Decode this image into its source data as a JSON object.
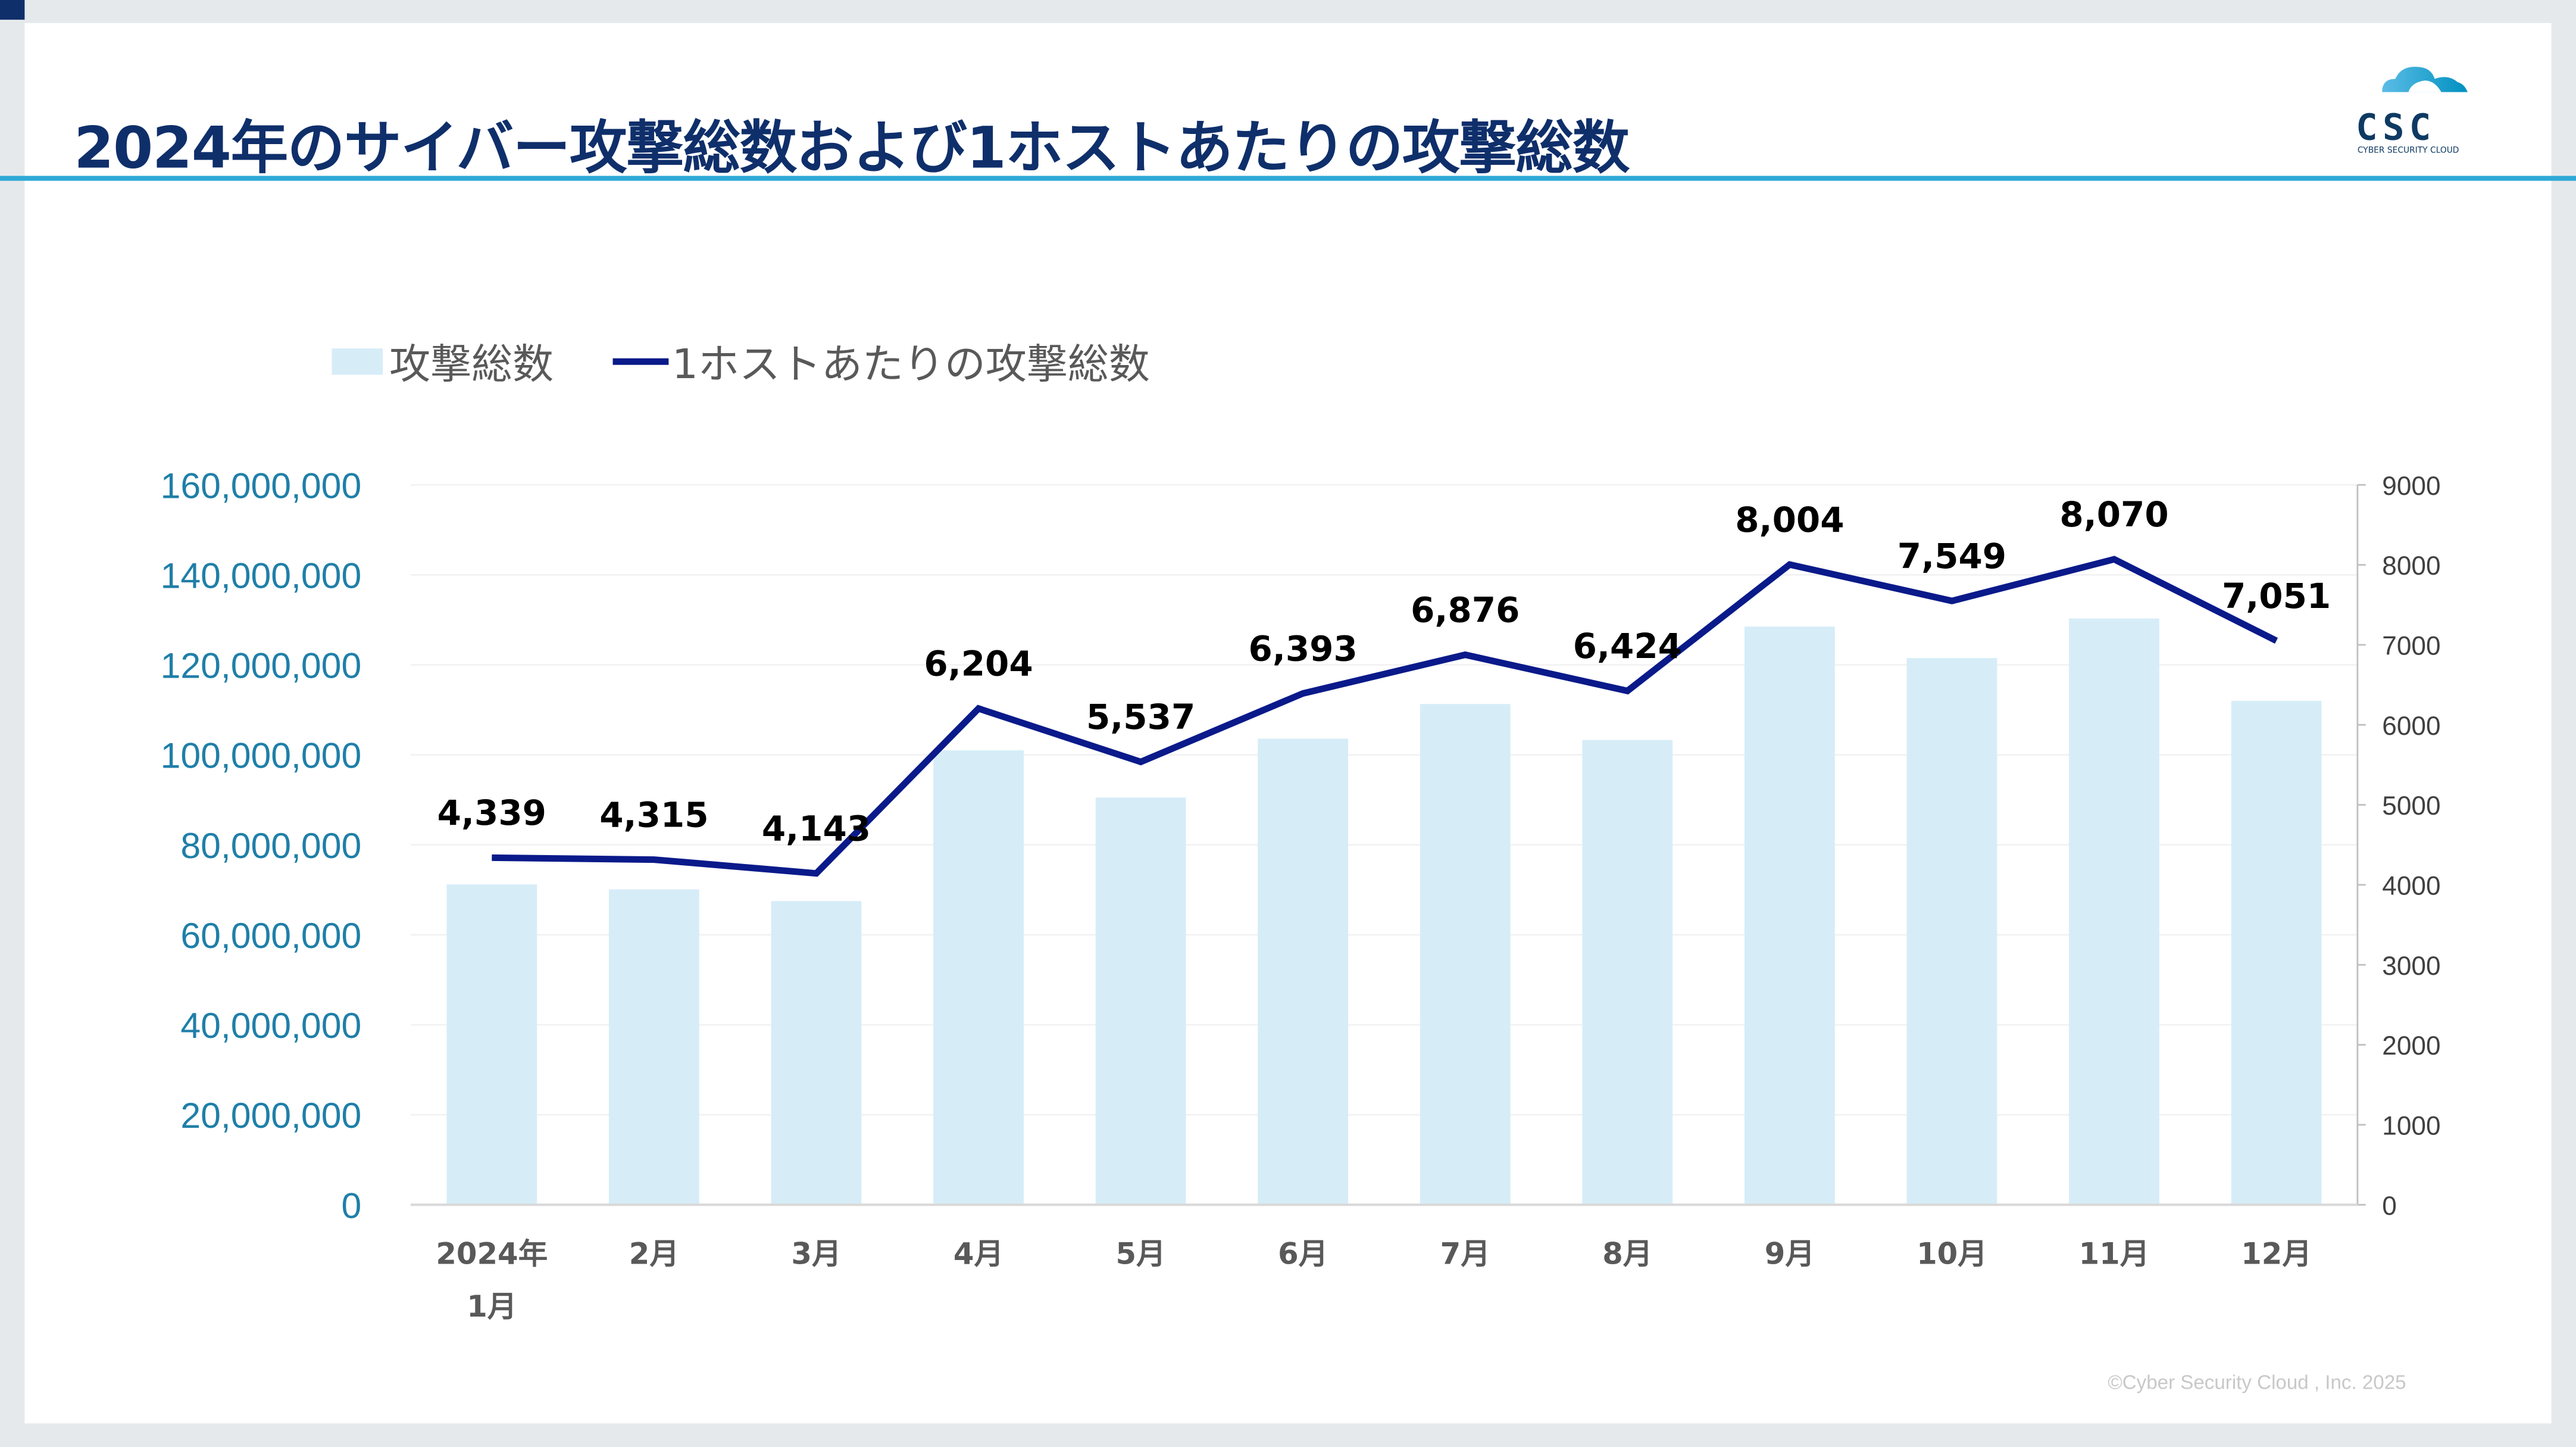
{
  "title": "2024年のサイバー攻撃総数および1ホストあたりの攻撃総数",
  "logo": {
    "text": "CSC",
    "subtitle": "CYBER SECURITY CLOUD"
  },
  "footer": "©Cyber Security Cloud , Inc. 2025",
  "colors": {
    "bar": "#d6edf8",
    "line": "#0a1a8a",
    "title": "#0f2f6b",
    "accent": "#2ea9d6",
    "left_axis": "#1f7fa8"
  },
  "chart_data": {
    "type": "bar+line",
    "categories": [
      "2024年\n1月",
      "2月",
      "3月",
      "4月",
      "5月",
      "6月",
      "7月",
      "8月",
      "9月",
      "10月",
      "11月",
      "12月"
    ],
    "series": [
      {
        "name": "攻撃総数",
        "type": "bar",
        "axis": "left",
        "values": [
          71200000,
          70100000,
          67500000,
          101000000,
          90500000,
          103600000,
          111300000,
          103300000,
          128500000,
          121500000,
          130300000,
          112000000
        ]
      },
      {
        "name": "1ホストあたりの攻撃総数",
        "type": "line",
        "axis": "right",
        "values": [
          4339,
          4315,
          4143,
          6204,
          5537,
          6393,
          6876,
          6424,
          8004,
          7549,
          8070,
          7051
        ],
        "labels": [
          "4,339",
          "4,315",
          "4,143",
          "6,204",
          "5,537",
          "6,393",
          "6,876",
          "6,424",
          "8,004",
          "7,549",
          "8,070",
          "7,051"
        ]
      }
    ],
    "left_axis": {
      "range": [
        0,
        160000000
      ],
      "ticks": [
        "0",
        "20,000,000",
        "40,000,000",
        "60,000,000",
        "80,000,000",
        "100,000,000",
        "120,000,000",
        "140,000,000",
        "160,000,000"
      ]
    },
    "right_axis": {
      "range": [
        0,
        9000
      ],
      "ticks": [
        "0",
        "1000",
        "2000",
        "3000",
        "4000",
        "5000",
        "6000",
        "7000",
        "8000",
        "9000"
      ]
    },
    "legend": "top-left",
    "grid": true
  }
}
